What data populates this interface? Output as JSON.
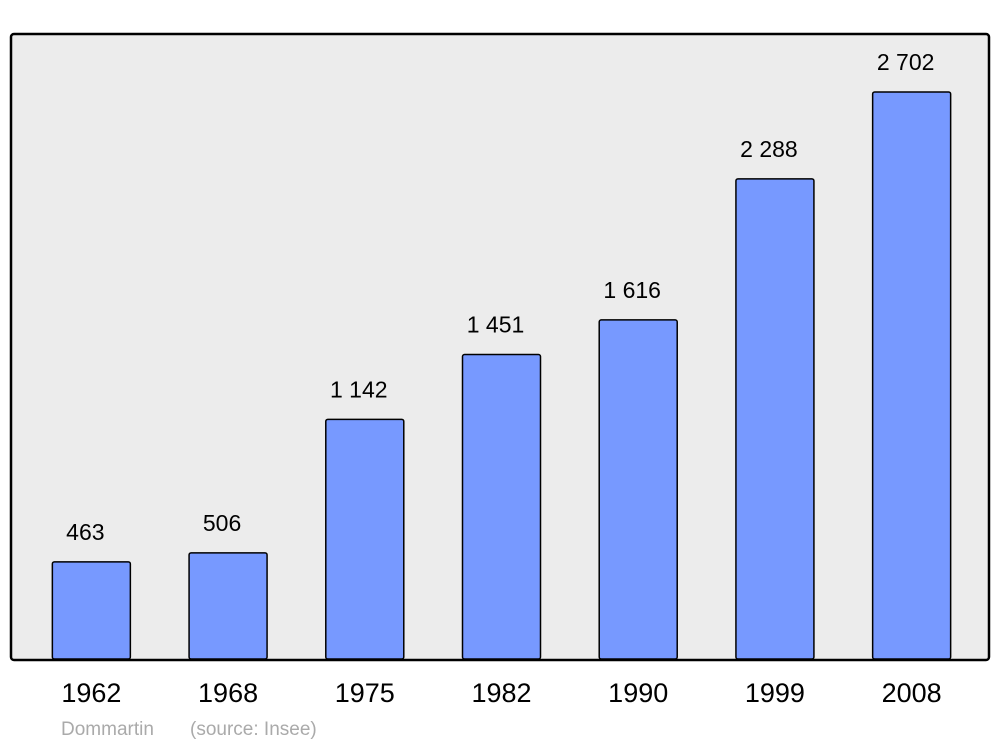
{
  "chart_data": {
    "type": "bar",
    "categories": [
      "1962",
      "1968",
      "1975",
      "1982",
      "1990",
      "1999",
      "2008"
    ],
    "values": [
      463,
      506,
      1142,
      1451,
      1616,
      2288,
      2702
    ],
    "value_labels": [
      "463",
      "506",
      "1 142",
      "1 451",
      "1 616",
      "2 288",
      "2 702"
    ],
    "color": "#7799ff",
    "place": "Dommartin",
    "source": "(source: Insee)"
  }
}
